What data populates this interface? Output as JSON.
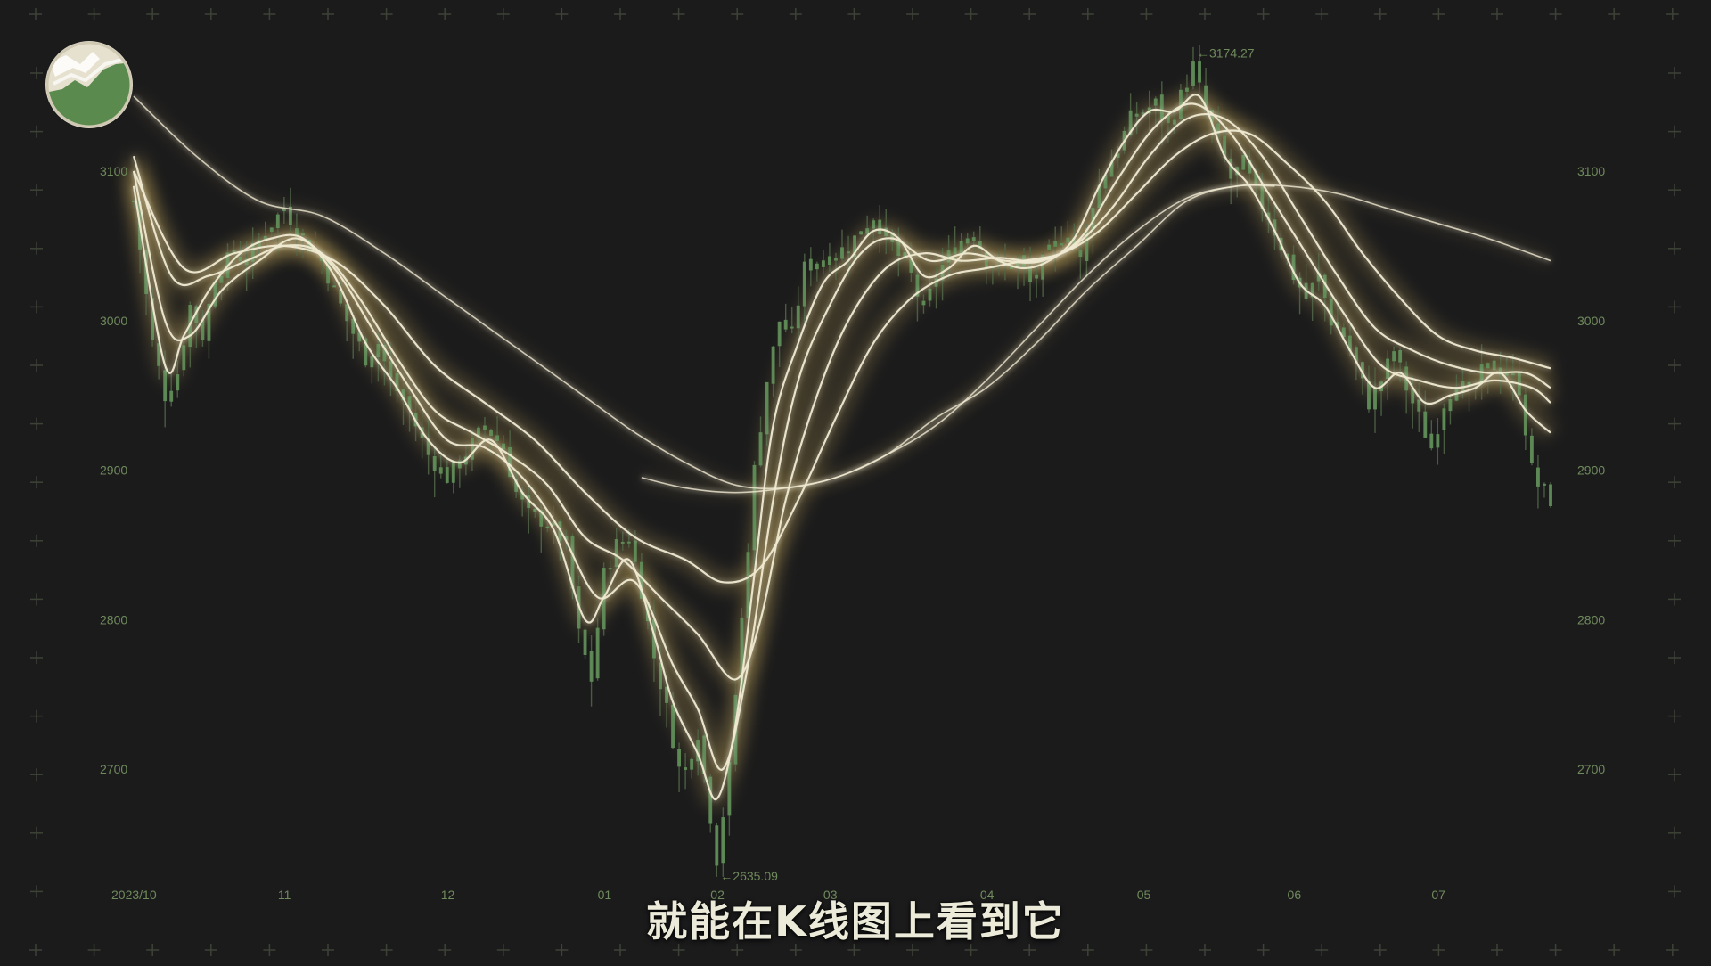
{
  "colors": {
    "background": "#1b1b1c",
    "grid_marker": "#3d4236",
    "axis_text": "#6f8a5c",
    "candle": "#5f8c57",
    "wick": "#4f6446",
    "ma_line": "#f0ead2",
    "ma_glow": "#b79d56",
    "subtitle": "#ecead8"
  },
  "logo_icon": "mountain-chart-badge-icon",
  "subtitle": "就能在K线图上看到它",
  "chart_data": {
    "type": "candlestick",
    "title": "",
    "xlabel": "",
    "ylabel": "",
    "ylim": [
      2620,
      3200
    ],
    "y_ticks": [
      2700,
      2800,
      2900,
      3000,
      3100
    ],
    "x_ticks": [
      {
        "label": "2023/10",
        "x": 0
      },
      {
        "label": "11",
        "x": 24
      },
      {
        "label": "12",
        "x": 50
      },
      {
        "label": "01",
        "x": 75
      },
      {
        "label": "02",
        "x": 93
      },
      {
        "label": "03",
        "x": 111
      },
      {
        "label": "04",
        "x": 136
      },
      {
        "label": "05",
        "x": 161
      },
      {
        "label": "06",
        "x": 185
      },
      {
        "label": "07",
        "x": 208
      }
    ],
    "x_range": [
      0,
      226
    ],
    "annotations": [
      {
        "text": "←3174.27",
        "x": 169,
        "y": 3174.27
      },
      {
        "text": "←2635.09",
        "x": 93,
        "y": 2635.09
      }
    ],
    "close_anchors": [
      [
        0,
        3080
      ],
      [
        3,
        2985
      ],
      [
        5,
        2950
      ],
      [
        7,
        2965
      ],
      [
        9,
        3010
      ],
      [
        11,
        2990
      ],
      [
        13,
        3030
      ],
      [
        16,
        3045
      ],
      [
        18,
        3040
      ],
      [
        21,
        3060
      ],
      [
        24,
        3075
      ],
      [
        27,
        3055
      ],
      [
        30,
        3040
      ],
      [
        34,
        3000
      ],
      [
        37,
        2975
      ],
      [
        39,
        2985
      ],
      [
        41,
        2960
      ],
      [
        44,
        2940
      ],
      [
        47,
        2910
      ],
      [
        50,
        2895
      ],
      [
        52,
        2905
      ],
      [
        56,
        2930
      ],
      [
        59,
        2915
      ],
      [
        61,
        2885
      ],
      [
        63,
        2870
      ],
      [
        66,
        2865
      ],
      [
        69,
        2850
      ],
      [
        71,
        2790
      ],
      [
        73,
        2760
      ],
      [
        75,
        2830
      ],
      [
        77,
        2850
      ],
      [
        79,
        2855
      ],
      [
        81,
        2820
      ],
      [
        83,
        2775
      ],
      [
        85,
        2740
      ],
      [
        87,
        2700
      ],
      [
        88,
        2700
      ],
      [
        90,
        2725
      ],
      [
        93,
        2640
      ],
      [
        95,
        2700
      ],
      [
        97,
        2800
      ],
      [
        99,
        2900
      ],
      [
        101,
        2960
      ],
      [
        103,
        3000
      ],
      [
        105,
        2990
      ],
      [
        107,
        3035
      ],
      [
        109,
        3040
      ],
      [
        112,
        3045
      ],
      [
        114,
        3050
      ],
      [
        116,
        3060
      ],
      [
        118,
        3070
      ],
      [
        121,
        3050
      ],
      [
        124,
        3030
      ],
      [
        126,
        3005
      ],
      [
        128,
        3030
      ],
      [
        131,
        3050
      ],
      [
        134,
        3060
      ],
      [
        136,
        3040
      ],
      [
        139,
        3035
      ],
      [
        141,
        3040
      ],
      [
        143,
        3025
      ],
      [
        146,
        3045
      ],
      [
        149,
        3060
      ],
      [
        151,
        3040
      ],
      [
        153,
        3080
      ],
      [
        155,
        3100
      ],
      [
        157,
        3115
      ],
      [
        159,
        3135
      ],
      [
        161,
        3140
      ],
      [
        163,
        3145
      ],
      [
        165,
        3130
      ],
      [
        167,
        3150
      ],
      [
        169,
        3170
      ],
      [
        171,
        3140
      ],
      [
        173,
        3120
      ],
      [
        175,
        3095
      ],
      [
        177,
        3105
      ],
      [
        179,
        3085
      ],
      [
        181,
        3070
      ],
      [
        183,
        3050
      ],
      [
        185,
        3030
      ],
      [
        187,
        3015
      ],
      [
        189,
        3030
      ],
      [
        191,
        3000
      ],
      [
        193,
        2990
      ],
      [
        195,
        2970
      ],
      [
        197,
        2945
      ],
      [
        199,
        2960
      ],
      [
        201,
        2980
      ],
      [
        203,
        2955
      ],
      [
        205,
        2935
      ],
      [
        207,
        2915
      ],
      [
        209,
        2945
      ],
      [
        211,
        2960
      ],
      [
        213,
        2950
      ],
      [
        215,
        2965
      ],
      [
        217,
        2970
      ],
      [
        219,
        2965
      ],
      [
        221,
        2955
      ],
      [
        223,
        2900
      ],
      [
        224,
        2890
      ],
      [
        226,
        2880
      ]
    ],
    "moving_averages": [
      {
        "period": 5,
        "points": [
          [
            0,
            3090
          ],
          [
            5,
            2970
          ],
          [
            8,
            2990
          ],
          [
            12,
            3020
          ],
          [
            17,
            3045
          ],
          [
            22,
            3055
          ],
          [
            27,
            3055
          ],
          [
            32,
            3030
          ],
          [
            37,
            2985
          ],
          [
            42,
            2955
          ],
          [
            47,
            2920
          ],
          [
            52,
            2905
          ],
          [
            57,
            2920
          ],
          [
            62,
            2885
          ],
          [
            67,
            2860
          ],
          [
            72,
            2800
          ],
          [
            75,
            2815
          ],
          [
            79,
            2840
          ],
          [
            83,
            2790
          ],
          [
            86,
            2745
          ],
          [
            90,
            2710
          ],
          [
            93,
            2680
          ],
          [
            96,
            2730
          ],
          [
            99,
            2830
          ],
          [
            102,
            2930
          ],
          [
            106,
            2985
          ],
          [
            110,
            3025
          ],
          [
            114,
            3040
          ],
          [
            118,
            3060
          ],
          [
            122,
            3055
          ],
          [
            126,
            3030
          ],
          [
            130,
            3035
          ],
          [
            134,
            3050
          ],
          [
            138,
            3040
          ],
          [
            142,
            3035
          ],
          [
            146,
            3040
          ],
          [
            150,
            3055
          ],
          [
            154,
            3090
          ],
          [
            158,
            3120
          ],
          [
            162,
            3140
          ],
          [
            166,
            3140
          ],
          [
            170,
            3150
          ],
          [
            174,
            3110
          ],
          [
            178,
            3090
          ],
          [
            182,
            3060
          ],
          [
            186,
            3025
          ],
          [
            190,
            3010
          ],
          [
            194,
            2980
          ],
          [
            198,
            2955
          ],
          [
            202,
            2965
          ],
          [
            206,
            2945
          ],
          [
            210,
            2950
          ],
          [
            214,
            2955
          ],
          [
            218,
            2965
          ],
          [
            222,
            2940
          ],
          [
            226,
            2925
          ]
        ]
      },
      {
        "period": 10,
        "points": [
          [
            0,
            3100
          ],
          [
            5,
            3000
          ],
          [
            9,
            2990
          ],
          [
            14,
            3020
          ],
          [
            20,
            3040
          ],
          [
            26,
            3055
          ],
          [
            32,
            3035
          ],
          [
            38,
            2995
          ],
          [
            44,
            2955
          ],
          [
            50,
            2920
          ],
          [
            56,
            2915
          ],
          [
            62,
            2895
          ],
          [
            68,
            2860
          ],
          [
            74,
            2815
          ],
          [
            80,
            2825
          ],
          [
            86,
            2770
          ],
          [
            90,
            2740
          ],
          [
            94,
            2700
          ],
          [
            98,
            2770
          ],
          [
            102,
            2880
          ],
          [
            106,
            2960
          ],
          [
            111,
            3010
          ],
          [
            116,
            3045
          ],
          [
            121,
            3055
          ],
          [
            127,
            3040
          ],
          [
            133,
            3045
          ],
          [
            139,
            3040
          ],
          [
            145,
            3040
          ],
          [
            151,
            3055
          ],
          [
            157,
            3095
          ],
          [
            163,
            3130
          ],
          [
            169,
            3145
          ],
          [
            175,
            3125
          ],
          [
            181,
            3085
          ],
          [
            187,
            3045
          ],
          [
            193,
            3005
          ],
          [
            199,
            2970
          ],
          [
            205,
            2960
          ],
          [
            211,
            2955
          ],
          [
            217,
            2960
          ],
          [
            223,
            2955
          ],
          [
            226,
            2945
          ]
        ]
      },
      {
        "period": 20,
        "points": [
          [
            0,
            3110
          ],
          [
            6,
            3030
          ],
          [
            12,
            3030
          ],
          [
            18,
            3040
          ],
          [
            24,
            3050
          ],
          [
            30,
            3045
          ],
          [
            36,
            3015
          ],
          [
            42,
            2975
          ],
          [
            48,
            2940
          ],
          [
            54,
            2925
          ],
          [
            60,
            2910
          ],
          [
            66,
            2890
          ],
          [
            72,
            2855
          ],
          [
            78,
            2840
          ],
          [
            84,
            2815
          ],
          [
            90,
            2790
          ],
          [
            96,
            2760
          ],
          [
            100,
            2800
          ],
          [
            104,
            2880
          ],
          [
            109,
            2950
          ],
          [
            114,
            3000
          ],
          [
            120,
            3035
          ],
          [
            126,
            3045
          ],
          [
            132,
            3040
          ],
          [
            138,
            3042
          ],
          [
            144,
            3040
          ],
          [
            150,
            3050
          ],
          [
            156,
            3075
          ],
          [
            162,
            3110
          ],
          [
            168,
            3135
          ],
          [
            174,
            3135
          ],
          [
            180,
            3110
          ],
          [
            186,
            3070
          ],
          [
            192,
            3030
          ],
          [
            198,
            2995
          ],
          [
            204,
            2980
          ],
          [
            210,
            2970
          ],
          [
            216,
            2965
          ],
          [
            222,
            2965
          ],
          [
            226,
            2955
          ]
        ]
      },
      {
        "period": 30,
        "points": [
          [
            0,
            3100
          ],
          [
            8,
            3035
          ],
          [
            16,
            3045
          ],
          [
            24,
            3050
          ],
          [
            32,
            3040
          ],
          [
            40,
            3010
          ],
          [
            48,
            2970
          ],
          [
            56,
            2945
          ],
          [
            64,
            2920
          ],
          [
            72,
            2885
          ],
          [
            80,
            2855
          ],
          [
            88,
            2840
          ],
          [
            94,
            2825
          ],
          [
            100,
            2835
          ],
          [
            106,
            2880
          ],
          [
            112,
            2935
          ],
          [
            118,
            2985
          ],
          [
            124,
            3015
          ],
          [
            130,
            3030
          ],
          [
            136,
            3035
          ],
          [
            142,
            3040
          ],
          [
            148,
            3045
          ],
          [
            154,
            3060
          ],
          [
            160,
            3085
          ],
          [
            166,
            3110
          ],
          [
            172,
            3125
          ],
          [
            178,
            3125
          ],
          [
            184,
            3105
          ],
          [
            190,
            3080
          ],
          [
            196,
            3045
          ],
          [
            202,
            3015
          ],
          [
            208,
            2990
          ],
          [
            214,
            2980
          ],
          [
            220,
            2975
          ],
          [
            226,
            2968
          ]
        ]
      },
      {
        "period": 60,
        "points": [
          [
            0,
            3150
          ],
          [
            10,
            3110
          ],
          [
            20,
            3080
          ],
          [
            30,
            3070
          ],
          [
            40,
            3045
          ],
          [
            50,
            3015
          ],
          [
            60,
            2985
          ],
          [
            70,
            2955
          ],
          [
            80,
            2925
          ],
          [
            88,
            2905
          ],
          [
            96,
            2890
          ],
          [
            104,
            2888
          ],
          [
            112,
            2895
          ],
          [
            120,
            2910
          ],
          [
            128,
            2935
          ],
          [
            136,
            2955
          ],
          [
            144,
            2985
          ],
          [
            152,
            3020
          ],
          [
            160,
            3050
          ],
          [
            168,
            3080
          ],
          [
            176,
            3090
          ],
          [
            184,
            3090
          ],
          [
            192,
            3085
          ],
          [
            200,
            3075
          ],
          [
            208,
            3065
          ],
          [
            216,
            3055
          ],
          [
            226,
            3040
          ]
        ]
      },
      {
        "period": 120,
        "points": [
          [
            81,
            2895
          ],
          [
            88,
            2888
          ],
          [
            96,
            2885
          ],
          [
            104,
            2888
          ],
          [
            112,
            2895
          ],
          [
            120,
            2910
          ],
          [
            128,
            2930
          ],
          [
            136,
            2960
          ],
          [
            144,
            2995
          ],
          [
            152,
            3030
          ],
          [
            160,
            3060
          ],
          [
            168,
            3082
          ],
          [
            176,
            3090
          ],
          [
            182,
            3090
          ]
        ]
      }
    ]
  }
}
